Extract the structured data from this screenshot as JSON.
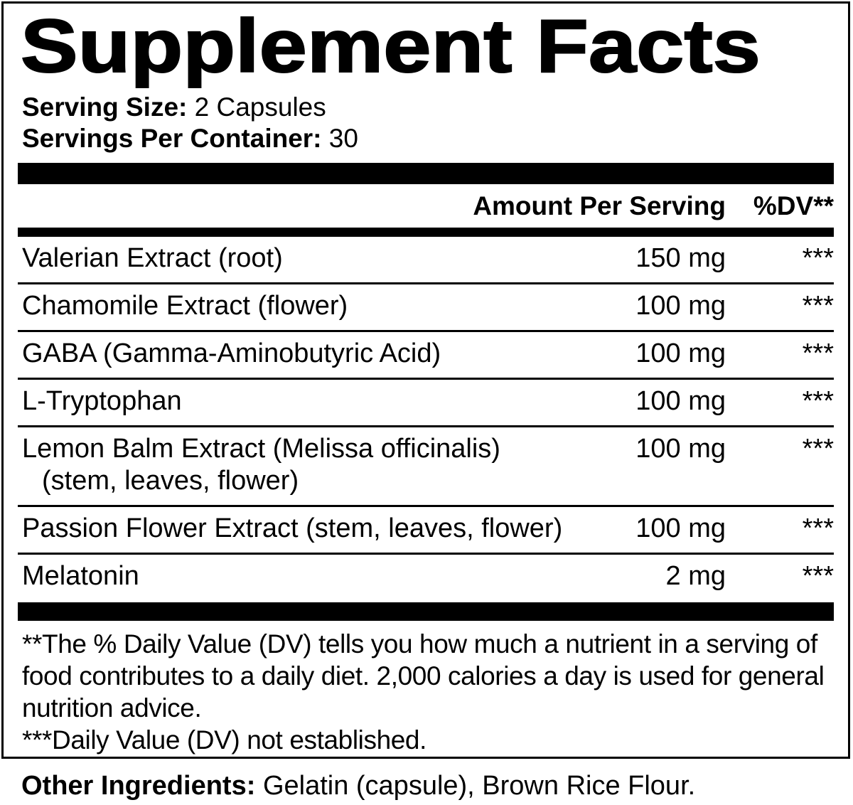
{
  "title": "Supplement Facts",
  "serving_info": {
    "serving_size_label": "Serving Size:",
    "serving_size_value": "2 Capsules",
    "servings_per_container_label": "Servings Per Container:",
    "servings_per_container_value": "30"
  },
  "table": {
    "amount_header": "Amount Per Serving",
    "dv_header": "%DV**",
    "rows": [
      {
        "name": "Valerian Extract (root)",
        "amount": "150 mg",
        "dv": "***"
      },
      {
        "name": "Chamomile Extract (flower)",
        "amount": "100 mg",
        "dv": "***"
      },
      {
        "name": "GABA (Gamma-Aminobutyric Acid)",
        "amount": "100 mg",
        "dv": "***"
      },
      {
        "name": "L-Tryptophan",
        "amount": "100 mg",
        "dv": "***"
      },
      {
        "name": "Lemon Balm Extract (Melissa officinalis)",
        "name_line2": "(stem, leaves, flower)",
        "amount": "100 mg",
        "dv": "***"
      },
      {
        "name": "Passion Flower Extract (stem, leaves, flower)",
        "amount": "100 mg",
        "dv": "***"
      },
      {
        "name": "Melatonin",
        "amount": "2 mg",
        "dv": "***"
      }
    ]
  },
  "footnotes": {
    "daily_value_note": "**The % Daily Value (DV) tells you how much a nutrient in a serving of food contributes to a daily diet. 2,000 calories a day is used for general nutrition advice.",
    "not_established_note": "***Daily Value (DV) not established."
  },
  "other_ingredients": {
    "label": "Other Ingredients:",
    "value": "Gelatin (capsule), Brown Rice Flour."
  },
  "colors": {
    "text": "#000000",
    "background": "#ffffff"
  }
}
